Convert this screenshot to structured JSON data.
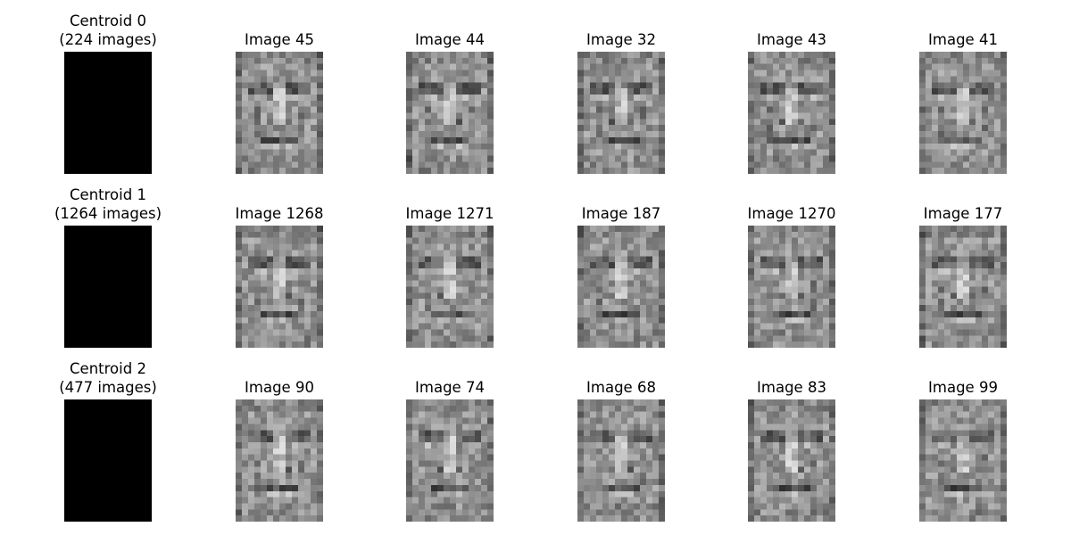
{
  "rows": [
    {
      "centroid": {
        "title": "Centroid 0",
        "subtitle": "(224 images)"
      },
      "images": [
        {
          "title": "Image 45"
        },
        {
          "title": "Image 44"
        },
        {
          "title": "Image 32"
        },
        {
          "title": "Image 43"
        },
        {
          "title": "Image 41"
        }
      ]
    },
    {
      "centroid": {
        "title": "Centroid 1",
        "subtitle": "(1264 images)"
      },
      "images": [
        {
          "title": "Image 1268"
        },
        {
          "title": "Image 1271"
        },
        {
          "title": "Image 187"
        },
        {
          "title": "Image 1270"
        },
        {
          "title": "Image 177"
        }
      ]
    },
    {
      "centroid": {
        "title": "Centroid 2",
        "subtitle": "(477 images)"
      },
      "images": [
        {
          "title": "Image 90"
        },
        {
          "title": "Image 74"
        },
        {
          "title": "Image 68"
        },
        {
          "title": "Image 83"
        },
        {
          "title": "Image 99"
        }
      ]
    }
  ],
  "colors": {
    "centroid_fill": "#000000",
    "background": "#ffffff"
  }
}
